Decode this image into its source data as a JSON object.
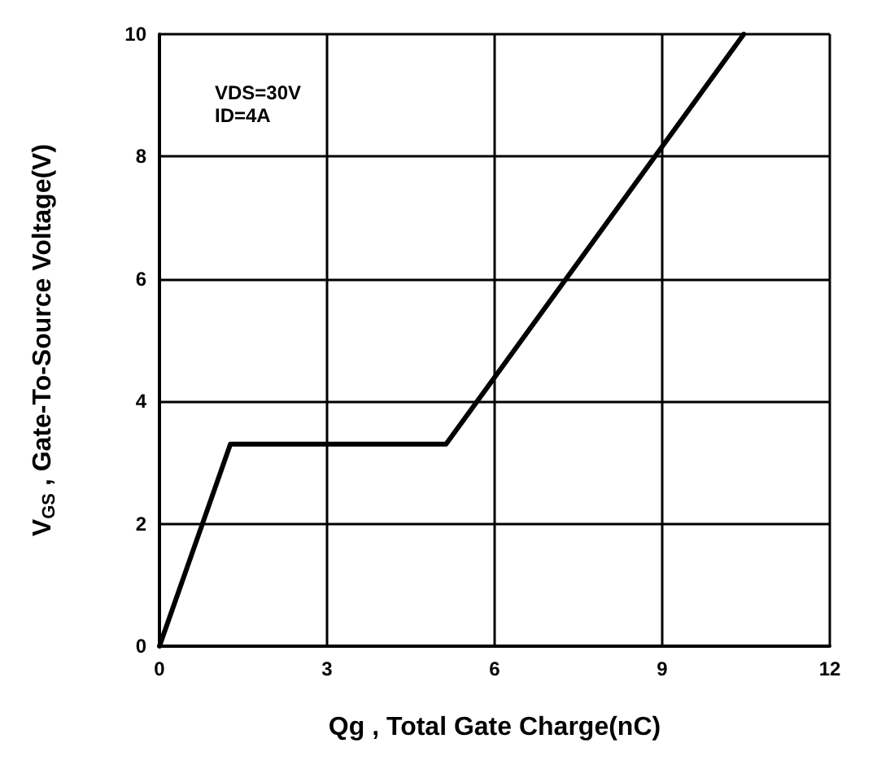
{
  "chart_data": {
    "type": "line",
    "xlabel": "Qg , Total Gate Charge(nC)",
    "ylabel": "V$_{GS}$ , Gate-To-Source Voltage(V)",
    "annotations": [
      "VDS=30V\nID=4A"
    ],
    "series": [
      {
        "color": "#000000",
        "x": [
          0,
          1.27,
          5.13,
          10.46
        ],
        "values": [
          0,
          3.3,
          3.3,
          10
        ]
      }
    ],
    "xlim": [
      0,
      12
    ],
    "xticks": [
      0,
      3,
      6,
      9,
      12
    ],
    "ylim": [
      0,
      10
    ],
    "yticks": [
      0,
      2,
      4,
      6,
      8,
      10
    ],
    "grid": true,
    "marker": "none",
    "line_style": "solid"
  }
}
